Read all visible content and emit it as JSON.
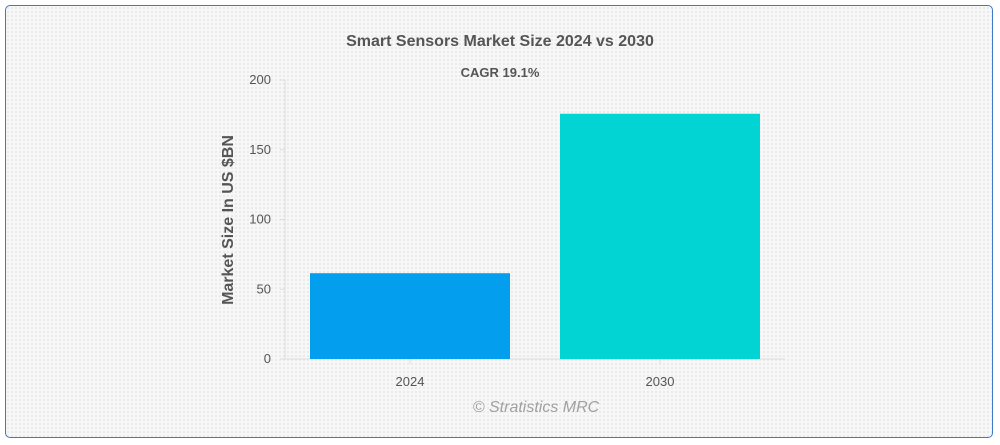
{
  "chart_data": {
    "type": "bar",
    "title": "Smart Sensors Market Size 2024 vs 2030",
    "subtitle": "CAGR 19.1%",
    "xlabel": "",
    "ylabel": "Market Size In US $BN",
    "categories": [
      "2024",
      "2030"
    ],
    "values": [
      61.5,
      175.8
    ],
    "ylim": [
      0,
      200
    ],
    "yticks": [
      0,
      50,
      100,
      150,
      200
    ],
    "colors": [
      "#039fee",
      "#02d3d3"
    ],
    "grid": false,
    "legend": "none"
  },
  "credit": "© Stratistics MRC"
}
